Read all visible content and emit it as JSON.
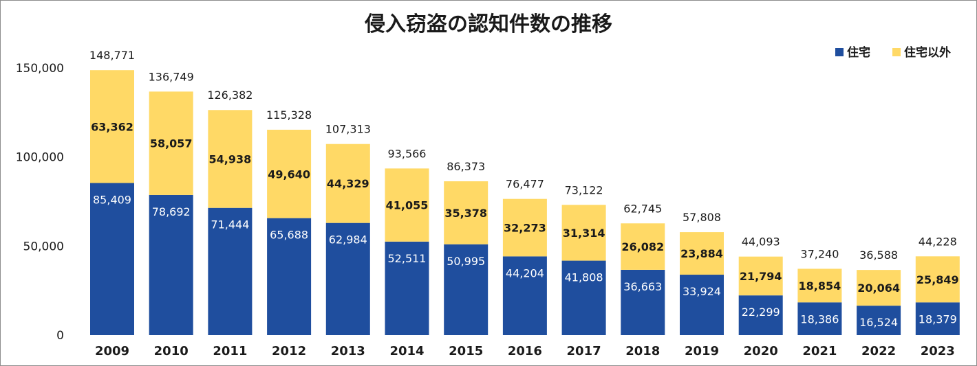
{
  "chart_data": {
    "type": "bar",
    "stacked": true,
    "title": "侵入窃盗の認知件数の推移",
    "xlabel": "",
    "ylabel": "",
    "categories": [
      "2009",
      "2010",
      "2011",
      "2012",
      "2013",
      "2014",
      "2015",
      "2016",
      "2017",
      "2018",
      "2019",
      "2020",
      "2021",
      "2022",
      "2023"
    ],
    "series": [
      {
        "name": "住宅",
        "color": "#1f4e9e",
        "values": [
          85409,
          78692,
          71444,
          65688,
          62984,
          52511,
          50995,
          44204,
          41808,
          36663,
          33924,
          22299,
          18386,
          16524,
          18379
        ]
      },
      {
        "name": "住宅以外",
        "color": "#ffd966",
        "values": [
          63362,
          58057,
          54938,
          49640,
          44329,
          41055,
          35378,
          32273,
          31314,
          26082,
          23884,
          21794,
          18854,
          20064,
          25849
        ]
      }
    ],
    "totals": [
      148771,
      136749,
      126382,
      115328,
      107313,
      93566,
      86373,
      76477,
      73122,
      62745,
      57808,
      44093,
      37240,
      36588,
      44228
    ],
    "ylim": [
      0,
      150000
    ],
    "yticks": [
      0,
      50000,
      100000,
      150000
    ],
    "ytick_labels": [
      "0",
      "50,000",
      "100,000",
      "150,000"
    ],
    "grid": false,
    "legend_position": "top-right"
  }
}
